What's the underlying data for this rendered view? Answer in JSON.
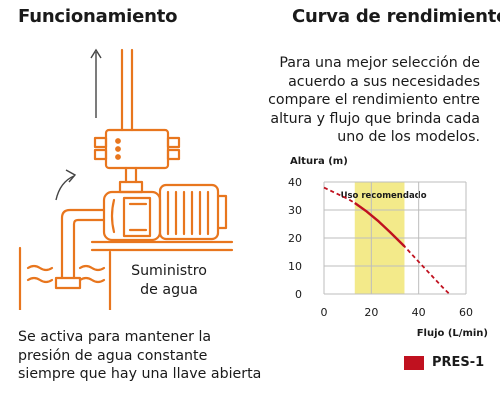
{
  "left": {
    "heading": "Funcionamiento",
    "supply_label": [
      "Suministro",
      "de agua"
    ],
    "explanation": [
      "Se activa para mantener la",
      "presión de agua constante",
      "siempre que hay una llave abierta"
    ]
  },
  "right": {
    "heading": "Curva de rendimiento",
    "description": [
      "Para una mejor selección de",
      "acuerdo a sus necesidades",
      "compare el rendimiento entre",
      "altura y flujo que brinda cada",
      "uno de los modelos."
    ]
  },
  "colors": {
    "pump_outline": "#e8761e",
    "curve": "#c0111f",
    "recommended_band": "#f3ea8a",
    "grid": "#bdbdbd"
  },
  "chart_data": {
    "type": "line",
    "ylabel": "Altura (m)",
    "xlabel": "Flujo (L/min)",
    "x_ticks": [
      0,
      20,
      40,
      60
    ],
    "y_ticks": [
      0,
      10,
      20,
      30,
      40
    ],
    "xlim": [
      0,
      60
    ],
    "ylim": [
      0,
      40
    ],
    "grid": true,
    "recommended_band": {
      "label": "Uso recomendado",
      "x_range": [
        13,
        34
      ]
    },
    "series": [
      {
        "name": "PRES-1",
        "x": [
          0,
          5,
          10,
          13,
          18,
          23,
          28,
          34,
          40,
          45,
          50,
          53
        ],
        "y": [
          38,
          36,
          34,
          32.5,
          29.5,
          26,
          22,
          17,
          11.5,
          7,
          2.5,
          0
        ],
        "solid_range": [
          13,
          34
        ]
      }
    ],
    "legend": {
      "placement": "bottom-right",
      "entries": [
        "PRES-1"
      ]
    }
  }
}
